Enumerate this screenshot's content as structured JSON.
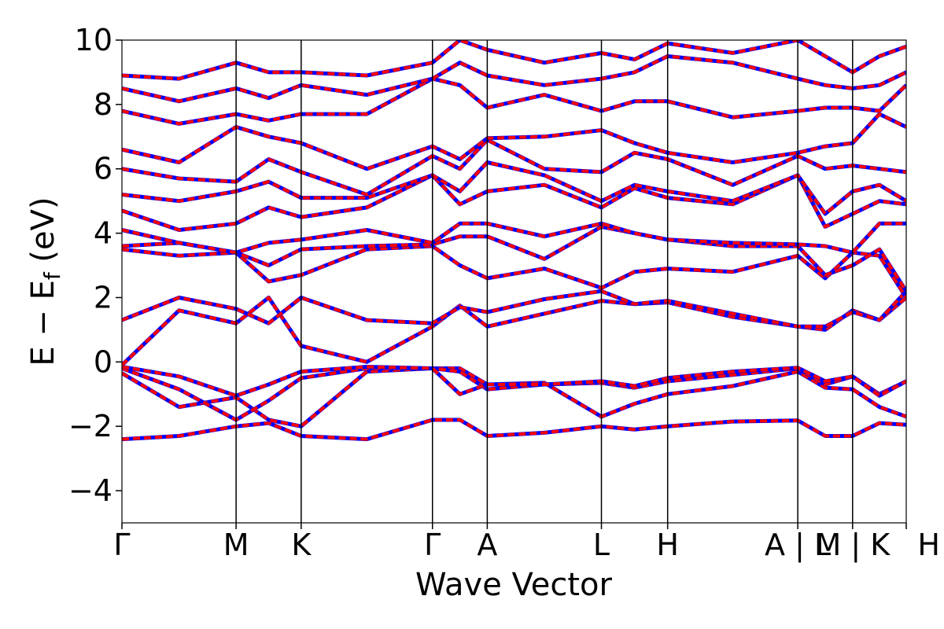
{
  "chart_data": {
    "type": "line",
    "xlabel": "Wave Vector",
    "ylabel": {
      "main": "E − E",
      "subscript": "f",
      "unit": " (eV)"
    },
    "ylim": [
      -5,
      10
    ],
    "y_ticks": [
      -4,
      -2,
      0,
      2,
      4,
      6,
      8,
      10
    ],
    "y_tick_labels": [
      "−4",
      "−2",
      "0",
      "2",
      "4",
      "6",
      "8",
      "10"
    ],
    "x_range": [
      0,
      6.87
    ],
    "kpath_ticks": [
      {
        "label": "Γ",
        "x": 0.0
      },
      {
        "label": "M",
        "x": 1.0
      },
      {
        "label": "K",
        "x": 1.57
      },
      {
        "label": "Γ",
        "x": 2.72
      },
      {
        "label": "A",
        "x": 3.2
      },
      {
        "label": "L",
        "x": 4.2
      },
      {
        "label": "H",
        "x": 4.78
      },
      {
        "label": "A | L",
        "x": 5.92
      },
      {
        "label": "M | K",
        "x": 6.4
      },
      {
        "label": "H",
        "x": 6.87
      }
    ],
    "grid": false,
    "series_styles": [
      {
        "color": "#0000ff",
        "style": "solid",
        "width": 5
      },
      {
        "color": "#ff0000",
        "style": "dashed",
        "width": 4
      }
    ],
    "bands": [
      [
        -2.4,
        -2.3,
        -2.0,
        -1.9,
        -2.3,
        -2.4,
        -1.8,
        -1.8,
        -2.3,
        -2.2,
        -2.0,
        -2.1,
        -2.0,
        -1.85,
        -1.82,
        -2.3,
        -2.3,
        -1.9,
        -1.95
      ],
      [
        -0.35,
        -1.4,
        -1.1,
        -1.8,
        -2.0,
        -0.3,
        -0.2,
        -0.2,
        -0.7,
        -0.65,
        -1.7,
        -1.3,
        -1.0,
        -0.75,
        -0.3,
        -0.8,
        -0.85,
        -1.4,
        -1.7
      ],
      [
        -0.2,
        -0.85,
        -1.8,
        -1.2,
        -0.5,
        -0.2,
        -0.2,
        -0.3,
        -0.85,
        -0.7,
        -0.65,
        -0.8,
        -0.6,
        -0.4,
        -0.2,
        -0.7,
        -0.45,
        -1.0,
        -0.6
      ],
      [
        -0.15,
        -0.45,
        -1.05,
        -0.7,
        -0.3,
        -0.15,
        -0.2,
        -1.0,
        -0.7,
        -0.7,
        -0.6,
        -0.75,
        -0.5,
        -0.3,
        -0.18,
        -0.6,
        -0.45,
        -1.05,
        -0.6
      ],
      [
        -0.1,
        1.6,
        1.2,
        2.0,
        0.5,
        0.0,
        1.1,
        1.75,
        1.1,
        1.5,
        1.9,
        1.8,
        1.85,
        1.4,
        1.1,
        1.0,
        1.6,
        1.3,
        2.0
      ],
      [
        1.3,
        2.0,
        1.65,
        1.2,
        2.0,
        1.3,
        1.2,
        1.7,
        1.55,
        1.95,
        2.2,
        1.8,
        1.9,
        1.5,
        1.1,
        1.1,
        1.55,
        1.3,
        2.2
      ],
      [
        3.5,
        3.3,
        3.4,
        2.5,
        2.7,
        3.5,
        3.6,
        3.0,
        2.6,
        2.9,
        2.3,
        2.8,
        2.9,
        2.8,
        3.3,
        2.6,
        3.4,
        3.3,
        2.0
      ],
      [
        3.6,
        3.7,
        3.4,
        3.0,
        3.5,
        3.6,
        3.65,
        3.9,
        3.9,
        3.2,
        4.2,
        4.0,
        3.8,
        3.6,
        3.6,
        2.7,
        3.0,
        3.5,
        2.2
      ],
      [
        4.1,
        3.7,
        3.4,
        3.7,
        3.8,
        4.1,
        3.7,
        4.3,
        4.3,
        3.9,
        4.3,
        4.0,
        3.8,
        3.7,
        3.65,
        3.6,
        3.4,
        4.3,
        4.3
      ],
      [
        4.7,
        4.1,
        4.3,
        4.8,
        4.5,
        4.8,
        5.8,
        4.9,
        5.3,
        5.5,
        4.8,
        5.4,
        5.1,
        4.9,
        5.8,
        4.2,
        4.6,
        5.0,
        4.9
      ],
      [
        5.2,
        5.0,
        5.3,
        5.6,
        5.1,
        5.1,
        5.8,
        5.3,
        6.2,
        5.8,
        5.0,
        5.5,
        5.3,
        5.0,
        5.8,
        4.6,
        5.3,
        5.5,
        5.0
      ],
      [
        6.0,
        5.7,
        5.6,
        6.3,
        5.9,
        5.2,
        6.4,
        6.0,
        6.9,
        6.0,
        5.9,
        6.5,
        6.3,
        5.5,
        6.4,
        6.0,
        6.1,
        6.0,
        5.9
      ],
      [
        6.6,
        6.2,
        7.3,
        7.0,
        6.8,
        6.0,
        6.7,
        6.3,
        6.95,
        7.0,
        7.2,
        6.8,
        6.5,
        6.2,
        6.5,
        6.7,
        6.8,
        7.7,
        7.3
      ],
      [
        7.8,
        7.4,
        7.7,
        7.5,
        7.7,
        7.7,
        8.8,
        8.6,
        7.9,
        8.3,
        7.8,
        8.1,
        8.1,
        7.6,
        7.8,
        7.9,
        7.9,
        7.8,
        8.6
      ],
      [
        8.5,
        8.1,
        8.5,
        8.2,
        8.6,
        8.3,
        8.8,
        9.3,
        8.9,
        8.6,
        8.8,
        9.0,
        9.5,
        9.3,
        8.8,
        8.6,
        8.5,
        8.6,
        9.0
      ],
      [
        8.9,
        8.8,
        9.3,
        9.0,
        9.0,
        8.9,
        9.3,
        10.0,
        9.7,
        9.3,
        9.6,
        9.4,
        9.9,
        9.6,
        10.0,
        9.5,
        9.0,
        9.5,
        9.8
      ]
    ]
  }
}
